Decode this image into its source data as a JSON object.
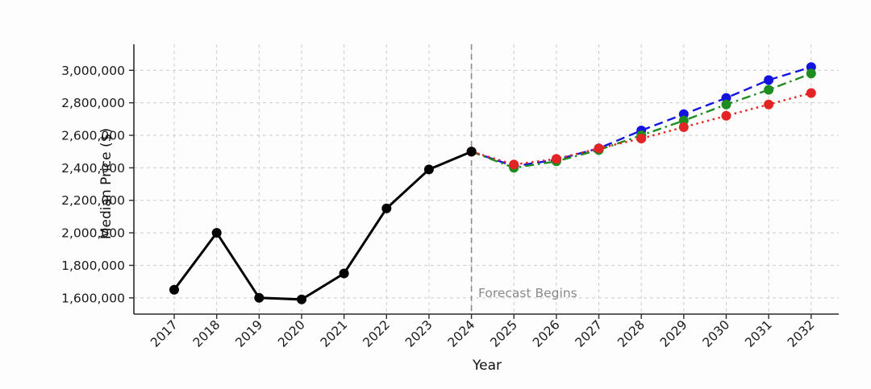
{
  "page": {
    "background": "#fdfdfd"
  },
  "chart_data": {
    "type": "line",
    "title": "",
    "xlabel": "Year",
    "ylabel": "Median Price ($)",
    "annotation": {
      "text": "Forecast Begins",
      "x": 2024.15,
      "y": 1622000
    },
    "forecast_divider": {
      "x": 2024,
      "style": "dashed"
    },
    "x_ticks": [
      2017,
      2018,
      2019,
      2020,
      2021,
      2022,
      2023,
      2024,
      2025,
      2026,
      2027,
      2028,
      2029,
      2030,
      2031,
      2032
    ],
    "y_ticks": [
      1600000,
      1800000,
      2000000,
      2200000,
      2400000,
      2600000,
      2800000,
      3000000
    ],
    "xlim": [
      2016.05,
      2032.65
    ],
    "ylim": [
      1500000,
      3160000
    ],
    "grid": true,
    "legend": "none",
    "series": [
      {
        "name": "historical",
        "color": "#000000",
        "line_style": "solid",
        "marker": "circle",
        "x": [
          2017,
          2018,
          2019,
          2020,
          2021,
          2022,
          2023,
          2024
        ],
        "values": [
          1650000,
          2000000,
          1600000,
          1590000,
          1750000,
          2150000,
          2390000,
          2500000
        ]
      },
      {
        "name": "forecast-blue-dashed",
        "color": "#1414e0",
        "line_style": "dashed",
        "marker": "circle",
        "x": [
          2024,
          2025,
          2026,
          2027,
          2028,
          2029,
          2030,
          2031,
          2032
        ],
        "values": [
          2500000,
          2410000,
          2450000,
          2520000,
          2630000,
          2730000,
          2830000,
          2940000,
          3020000
        ]
      },
      {
        "name": "forecast-green-dashdot",
        "color": "#1f8c1f",
        "line_style": "dashdot",
        "marker": "circle",
        "x": [
          2024,
          2025,
          2026,
          2027,
          2028,
          2029,
          2030,
          2031,
          2032
        ],
        "values": [
          2500000,
          2400000,
          2440000,
          2510000,
          2600000,
          2690000,
          2790000,
          2880000,
          2980000
        ]
      },
      {
        "name": "forecast-red-dotted",
        "color": "#e32424",
        "line_style": "dotted",
        "marker": "circle",
        "x": [
          2024,
          2025,
          2026,
          2027,
          2028,
          2029,
          2030,
          2031,
          2032
        ],
        "values": [
          2500000,
          2420000,
          2455000,
          2520000,
          2580000,
          2650000,
          2720000,
          2790000,
          2860000
        ]
      }
    ],
    "style_colors": {
      "grid": "#cccccc",
      "axis": "#2b2b2b",
      "tick_label": "#1a1a1a",
      "divider": "#8c8c8c",
      "annotation": "#8a8a8a"
    }
  }
}
